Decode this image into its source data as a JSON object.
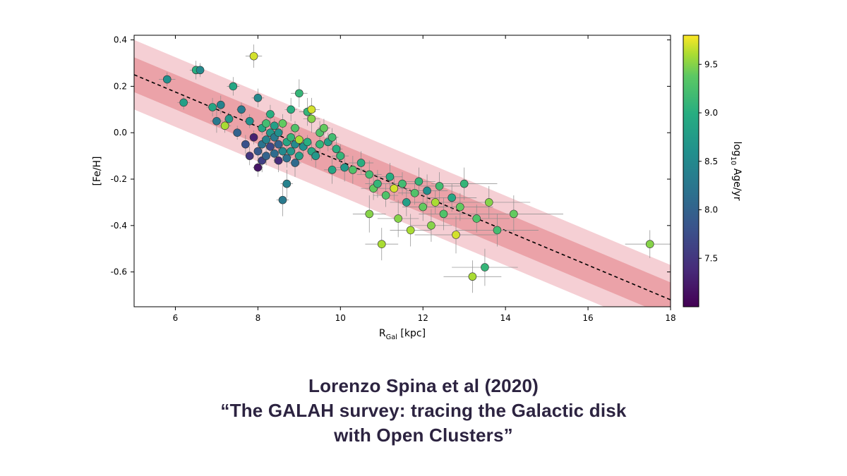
{
  "caption": {
    "line1": "Lorenzo Spina et al (2020)",
    "line2": "“The GALAH survey: tracing the Galactic disk",
    "line3": "with Open Clusters”",
    "color": "#2c2340",
    "fontsize": 26,
    "fontweight": 700
  },
  "chart": {
    "type": "scatter",
    "xlabel": "R",
    "xlabel_sub": "Gal",
    "xlabel_unit": " [kpc]",
    "ylabel": "[Fe/H]",
    "label_fontsize": 14,
    "tick_fontsize": 12,
    "xlim": [
      5,
      18
    ],
    "ylim": [
      -0.75,
      0.42
    ],
    "xticks": [
      6,
      8,
      10,
      12,
      14,
      16,
      18
    ],
    "yticks": [
      -0.6,
      -0.4,
      -0.2,
      0.0,
      0.2,
      0.4
    ],
    "background_color": "#ffffff",
    "axis_color": "#000000",
    "tick_color": "#000000",
    "marker_size": 5.5,
    "marker_edge": "#333333",
    "errorbar_color": "#8a8a8a",
    "errorbar_width": 0.7,
    "trend_line": {
      "x0": 5,
      "y0": 0.25,
      "x1": 18,
      "y1": -0.72,
      "color": "#000000",
      "dash": "5,4",
      "width": 1.6
    },
    "band_inner": {
      "color": "#e99aa0",
      "opacity": 0.85,
      "half_width": 0.075
    },
    "band_outer": {
      "color": "#f3c7cc",
      "opacity": 0.85,
      "half_width": 0.15
    },
    "colorbar": {
      "label": "log",
      "label_sub": "10",
      "label_rest": " Age/yr",
      "min": 7.0,
      "max": 9.8,
      "ticks": [
        7.5,
        8.0,
        8.5,
        9.0,
        9.5
      ],
      "stops": [
        {
          "t": 0.0,
          "c": "#440154"
        },
        {
          "t": 0.14,
          "c": "#472c7a"
        },
        {
          "t": 0.28,
          "c": "#3b518b"
        },
        {
          "t": 0.42,
          "c": "#2c718e"
        },
        {
          "t": 0.57,
          "c": "#21908d"
        },
        {
          "t": 0.71,
          "c": "#27ad81"
        },
        {
          "t": 0.85,
          "c": "#5cc863"
        },
        {
          "t": 0.93,
          "c": "#aadc32"
        },
        {
          "t": 1.0,
          "c": "#fde725"
        }
      ],
      "width": 22,
      "fontsize": 12
    },
    "points": [
      {
        "x": 5.8,
        "y": 0.23,
        "c": 8.6,
        "ex": 0.2,
        "ey": 0.03
      },
      {
        "x": 6.2,
        "y": 0.13,
        "c": 8.8,
        "ex": 0.15,
        "ey": 0.03
      },
      {
        "x": 6.5,
        "y": 0.27,
        "c": 9.0,
        "ex": 0.15,
        "ey": 0.04
      },
      {
        "x": 6.6,
        "y": 0.27,
        "c": 8.5,
        "ex": 0.1,
        "ey": 0.03
      },
      {
        "x": 6.9,
        "y": 0.11,
        "c": 8.9,
        "ex": 0.15,
        "ey": 0.04
      },
      {
        "x": 7.0,
        "y": 0.05,
        "c": 8.3,
        "ex": 0.15,
        "ey": 0.05
      },
      {
        "x": 7.1,
        "y": 0.12,
        "c": 8.4,
        "ex": 0.1,
        "ey": 0.04
      },
      {
        "x": 7.2,
        "y": 0.03,
        "c": 9.6,
        "ex": 0.15,
        "ey": 0.03
      },
      {
        "x": 7.3,
        "y": 0.06,
        "c": 8.7,
        "ex": 0.1,
        "ey": 0.03
      },
      {
        "x": 7.4,
        "y": 0.2,
        "c": 8.9,
        "ex": 0.15,
        "ey": 0.04
      },
      {
        "x": 7.5,
        "y": 0.0,
        "c": 8.0,
        "ex": 0.1,
        "ey": 0.03
      },
      {
        "x": 7.6,
        "y": 0.1,
        "c": 8.3,
        "ex": 0.12,
        "ey": 0.03
      },
      {
        "x": 7.7,
        "y": -0.05,
        "c": 7.8,
        "ex": 0.1,
        "ey": 0.04
      },
      {
        "x": 7.8,
        "y": 0.05,
        "c": 8.6,
        "ex": 0.12,
        "ey": 0.03
      },
      {
        "x": 7.8,
        "y": -0.1,
        "c": 7.5,
        "ex": 0.1,
        "ey": 0.04
      },
      {
        "x": 7.9,
        "y": -0.02,
        "c": 7.3,
        "ex": 0.1,
        "ey": 0.03
      },
      {
        "x": 7.9,
        "y": 0.33,
        "c": 9.7,
        "ex": 0.2,
        "ey": 0.05
      },
      {
        "x": 8.0,
        "y": 0.15,
        "c": 8.5,
        "ex": 0.15,
        "ey": 0.04
      },
      {
        "x": 8.0,
        "y": -0.08,
        "c": 7.9,
        "ex": 0.1,
        "ey": 0.03
      },
      {
        "x": 8.0,
        "y": -0.15,
        "c": 7.2,
        "ex": 0.12,
        "ey": 0.04
      },
      {
        "x": 8.1,
        "y": 0.02,
        "c": 8.9,
        "ex": 0.1,
        "ey": 0.03
      },
      {
        "x": 8.1,
        "y": -0.05,
        "c": 8.2,
        "ex": 0.1,
        "ey": 0.03
      },
      {
        "x": 8.1,
        "y": -0.12,
        "c": 7.6,
        "ex": 0.12,
        "ey": 0.05
      },
      {
        "x": 8.2,
        "y": 0.04,
        "c": 9.2,
        "ex": 0.1,
        "ey": 0.03
      },
      {
        "x": 8.2,
        "y": -0.03,
        "c": 8.4,
        "ex": 0.1,
        "ey": 0.03
      },
      {
        "x": 8.2,
        "y": -0.1,
        "c": 8.0,
        "ex": 0.1,
        "ey": 0.04
      },
      {
        "x": 8.3,
        "y": 0.0,
        "c": 8.7,
        "ex": 0.1,
        "ey": 0.03
      },
      {
        "x": 8.3,
        "y": -0.06,
        "c": 7.7,
        "ex": 0.1,
        "ey": 0.03
      },
      {
        "x": 8.3,
        "y": 0.08,
        "c": 9.0,
        "ex": 0.12,
        "ey": 0.04
      },
      {
        "x": 8.4,
        "y": -0.02,
        "c": 8.3,
        "ex": 0.1,
        "ey": 0.03
      },
      {
        "x": 8.4,
        "y": -0.09,
        "c": 8.1,
        "ex": 0.1,
        "ey": 0.04
      },
      {
        "x": 8.4,
        "y": 0.03,
        "c": 8.8,
        "ex": 0.1,
        "ey": 0.03
      },
      {
        "x": 8.5,
        "y": -0.05,
        "c": 8.0,
        "ex": 0.12,
        "ey": 0.03
      },
      {
        "x": 8.5,
        "y": 0.0,
        "c": 8.6,
        "ex": 0.1,
        "ey": 0.03
      },
      {
        "x": 8.5,
        "y": -0.12,
        "c": 7.4,
        "ex": 0.12,
        "ey": 0.05
      },
      {
        "x": 8.6,
        "y": -0.08,
        "c": 8.5,
        "ex": 0.1,
        "ey": 0.03
      },
      {
        "x": 8.6,
        "y": -0.29,
        "c": 8.3,
        "ex": 0.15,
        "ey": 0.07
      },
      {
        "x": 8.6,
        "y": 0.04,
        "c": 9.4,
        "ex": 0.12,
        "ey": 0.04
      },
      {
        "x": 8.7,
        "y": -0.04,
        "c": 8.9,
        "ex": 0.1,
        "ey": 0.03
      },
      {
        "x": 8.7,
        "y": -0.11,
        "c": 8.2,
        "ex": 0.1,
        "ey": 0.04
      },
      {
        "x": 8.7,
        "y": -0.22,
        "c": 8.4,
        "ex": 0.15,
        "ey": 0.06
      },
      {
        "x": 8.8,
        "y": -0.02,
        "c": 9.1,
        "ex": 0.1,
        "ey": 0.03
      },
      {
        "x": 8.8,
        "y": 0.1,
        "c": 9.0,
        "ex": 0.15,
        "ey": 0.05
      },
      {
        "x": 8.8,
        "y": -0.08,
        "c": 8.7,
        "ex": 0.1,
        "ey": 0.03
      },
      {
        "x": 8.9,
        "y": 0.02,
        "c": 9.3,
        "ex": 0.12,
        "ey": 0.03
      },
      {
        "x": 8.9,
        "y": -0.05,
        "c": 8.5,
        "ex": 0.1,
        "ey": 0.03
      },
      {
        "x": 8.9,
        "y": -0.13,
        "c": 8.1,
        "ex": 0.15,
        "ey": 0.06
      },
      {
        "x": 9.0,
        "y": 0.17,
        "c": 9.1,
        "ex": 0.2,
        "ey": 0.06
      },
      {
        "x": 9.0,
        "y": -0.03,
        "c": 9.6,
        "ex": 0.1,
        "ey": 0.03
      },
      {
        "x": 9.0,
        "y": -0.1,
        "c": 8.8,
        "ex": 0.12,
        "ey": 0.04
      },
      {
        "x": 9.1,
        "y": -0.06,
        "c": 8.6,
        "ex": 0.1,
        "ey": 0.04
      },
      {
        "x": 9.2,
        "y": 0.09,
        "c": 9.1,
        "ex": 0.2,
        "ey": 0.06
      },
      {
        "x": 9.2,
        "y": -0.04,
        "c": 9.0,
        "ex": 0.1,
        "ey": 0.03
      },
      {
        "x": 9.3,
        "y": 0.06,
        "c": 9.5,
        "ex": 0.2,
        "ey": 0.06
      },
      {
        "x": 9.3,
        "y": -0.08,
        "c": 8.9,
        "ex": 0.12,
        "ey": 0.04
      },
      {
        "x": 9.3,
        "y": 0.1,
        "c": 9.7,
        "ex": 0.2,
        "ey": 0.05
      },
      {
        "x": 9.4,
        "y": -0.1,
        "c": 8.7,
        "ex": 0.15,
        "ey": 0.05
      },
      {
        "x": 9.5,
        "y": -0.05,
        "c": 9.1,
        "ex": 0.12,
        "ey": 0.04
      },
      {
        "x": 9.5,
        "y": 0.0,
        "c": 9.3,
        "ex": 0.15,
        "ey": 0.05
      },
      {
        "x": 9.6,
        "y": 0.02,
        "c": 9.4,
        "ex": 0.15,
        "ey": 0.04
      },
      {
        "x": 9.7,
        "y": -0.04,
        "c": 8.8,
        "ex": 0.12,
        "ey": 0.04
      },
      {
        "x": 9.8,
        "y": -0.16,
        "c": 8.9,
        "ex": 0.2,
        "ey": 0.06
      },
      {
        "x": 9.8,
        "y": -0.02,
        "c": 9.2,
        "ex": 0.15,
        "ey": 0.04
      },
      {
        "x": 9.9,
        "y": -0.07,
        "c": 9.0,
        "ex": 0.15,
        "ey": 0.05
      },
      {
        "x": 10.0,
        "y": -0.1,
        "c": 9.1,
        "ex": 0.2,
        "ey": 0.05
      },
      {
        "x": 10.1,
        "y": -0.15,
        "c": 8.7,
        "ex": 0.2,
        "ey": 0.06
      },
      {
        "x": 10.3,
        "y": -0.16,
        "c": 9.3,
        "ex": 0.3,
        "ey": 0.06
      },
      {
        "x": 10.5,
        "y": -0.13,
        "c": 9.0,
        "ex": 0.3,
        "ey": 0.05
      },
      {
        "x": 10.7,
        "y": -0.18,
        "c": 9.2,
        "ex": 0.3,
        "ey": 0.06
      },
      {
        "x": 10.7,
        "y": -0.35,
        "c": 9.5,
        "ex": 0.4,
        "ey": 0.08
      },
      {
        "x": 10.8,
        "y": -0.24,
        "c": 9.4,
        "ex": 0.3,
        "ey": 0.05
      },
      {
        "x": 10.9,
        "y": -0.22,
        "c": 9.1,
        "ex": 0.3,
        "ey": 0.06
      },
      {
        "x": 11.0,
        "y": -0.48,
        "c": 9.6,
        "ex": 0.4,
        "ey": 0.07
      },
      {
        "x": 11.1,
        "y": -0.27,
        "c": 9.3,
        "ex": 0.3,
        "ey": 0.05
      },
      {
        "x": 11.2,
        "y": -0.19,
        "c": 9.0,
        "ex": 0.3,
        "ey": 0.06
      },
      {
        "x": 11.3,
        "y": -0.24,
        "c": 9.7,
        "ex": 0.4,
        "ey": 0.05
      },
      {
        "x": 11.4,
        "y": -0.37,
        "c": 9.5,
        "ex": 0.5,
        "ey": 0.08
      },
      {
        "x": 11.5,
        "y": -0.22,
        "c": 9.2,
        "ex": 0.4,
        "ey": 0.05
      },
      {
        "x": 11.6,
        "y": -0.3,
        "c": 8.8,
        "ex": 0.4,
        "ey": 0.06
      },
      {
        "x": 11.7,
        "y": -0.42,
        "c": 9.6,
        "ex": 0.5,
        "ey": 0.07
      },
      {
        "x": 11.8,
        "y": -0.26,
        "c": 9.3,
        "ex": 0.4,
        "ey": 0.05
      },
      {
        "x": 11.9,
        "y": -0.21,
        "c": 9.1,
        "ex": 0.4,
        "ey": 0.06
      },
      {
        "x": 12.0,
        "y": -0.32,
        "c": 9.4,
        "ex": 0.5,
        "ey": 0.06
      },
      {
        "x": 12.1,
        "y": -0.25,
        "c": 8.6,
        "ex": 0.5,
        "ey": 0.07
      },
      {
        "x": 12.2,
        "y": -0.4,
        "c": 9.5,
        "ex": 0.5,
        "ey": 0.07
      },
      {
        "x": 12.3,
        "y": -0.3,
        "c": 9.6,
        "ex": 0.5,
        "ey": 0.05
      },
      {
        "x": 12.4,
        "y": -0.23,
        "c": 9.2,
        "ex": 0.5,
        "ey": 0.06
      },
      {
        "x": 12.5,
        "y": -0.35,
        "c": 9.3,
        "ex": 0.6,
        "ey": 0.07
      },
      {
        "x": 12.7,
        "y": -0.28,
        "c": 8.9,
        "ex": 0.6,
        "ey": 0.06
      },
      {
        "x": 12.8,
        "y": -0.44,
        "c": 9.7,
        "ex": 1.0,
        "ey": 0.08
      },
      {
        "x": 12.9,
        "y": -0.32,
        "c": 9.4,
        "ex": 0.8,
        "ey": 0.06
      },
      {
        "x": 13.0,
        "y": -0.22,
        "c": 9.1,
        "ex": 0.8,
        "ey": 0.07
      },
      {
        "x": 13.2,
        "y": -0.62,
        "c": 9.6,
        "ex": 0.7,
        "ey": 0.07
      },
      {
        "x": 13.3,
        "y": -0.37,
        "c": 9.3,
        "ex": 0.8,
        "ey": 0.06
      },
      {
        "x": 13.5,
        "y": -0.58,
        "c": 9.1,
        "ex": 0.8,
        "ey": 0.08
      },
      {
        "x": 13.6,
        "y": -0.3,
        "c": 9.5,
        "ex": 1.0,
        "ey": 0.07
      },
      {
        "x": 13.8,
        "y": -0.42,
        "c": 9.2,
        "ex": 1.0,
        "ey": 0.07
      },
      {
        "x": 14.2,
        "y": -0.35,
        "c": 9.4,
        "ex": 1.2,
        "ey": 0.08
      },
      {
        "x": 17.5,
        "y": -0.48,
        "c": 9.5,
        "ex": 0.6,
        "ey": 0.06
      }
    ]
  }
}
